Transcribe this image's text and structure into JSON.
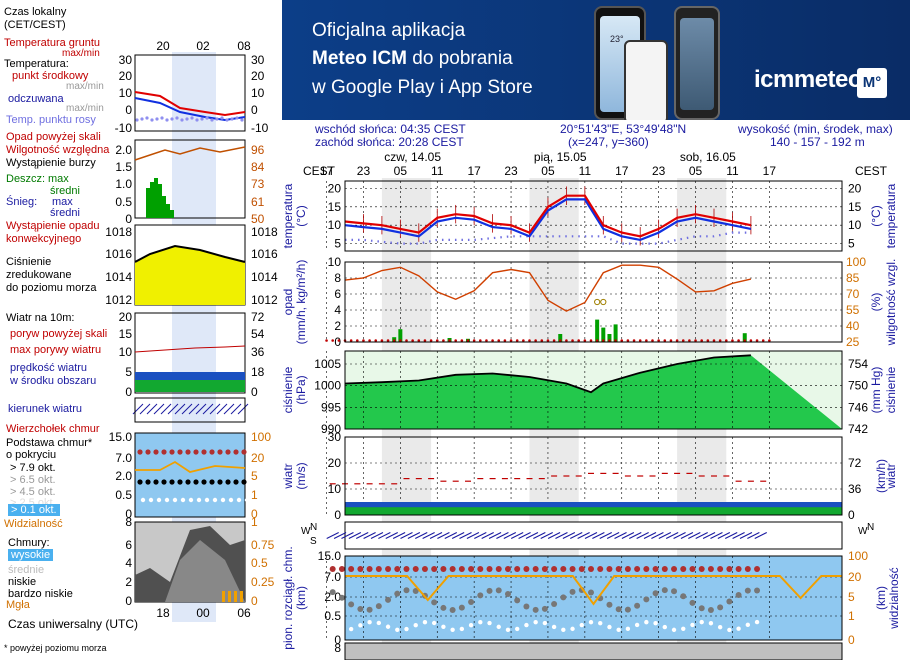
{
  "legend": {
    "time_local": "Czas lokalny",
    "time_local_zone": "(CET/CEST)",
    "soil_temp": "Temperatura gruntu",
    "soil_temp_minmax": "max/min",
    "temperature": "Temperatura:",
    "mid_point": "punkt środkowy",
    "max_min": "max/min",
    "apparent": "odczuwana",
    "apparent_minmax": "max/min",
    "dew_point": "Temp. punktu rosy",
    "precip_above": "Opad powyżej skali",
    "humidity": "Wilgotność względna",
    "storm": "Wystąpienie burzy",
    "rain": "Deszcz:",
    "snow": "Śnieg:",
    "max": "max",
    "mean": "średni",
    "precip_convective_1": "Wystąpienie opadu",
    "precip_convective_2": "konwekcyjnego",
    "pressure_1": "Ciśnienie",
    "pressure_2": "zredukowane",
    "pressure_3": "do poziomu morza",
    "wind_10m": "Wiatr na 10m:",
    "gusts_above": "poryw powyżej skali",
    "max_gusts": "max porywy wiatru",
    "wind_speed_1": "prędkość wiatru",
    "wind_speed_2": "w środku obszaru",
    "wind_dir": "kierunek wiatru",
    "cloud_top": "Wierzchołek chmur",
    "cloud_base_1": "Podstawa chmur*",
    "cloud_base_2": "o pokryciu",
    "okt_79": "> 7.9 okt.",
    "okt_65": "> 6.5 okt.",
    "okt_45": "> 4.5 okt.",
    "okt_25": "> 2.5 okt.",
    "okt_01": "> 0.1 okt.",
    "visibility": "Widzialność",
    "clouds": "Chmury:",
    "high": "wysokie",
    "medium": "średnie",
    "low": "niskie",
    "very_low": "bardzo niskie",
    "fog": "Mgła",
    "utc": "Czas uniwersalny (UTC)",
    "footnote": "* powyżej poziomu morza"
  },
  "legend_axes": {
    "time_top": [
      "20",
      "02",
      "08"
    ],
    "time_bottom": [
      "18",
      "00",
      "06"
    ],
    "temp_left": [
      "30",
      "20",
      "10",
      "0",
      "-10"
    ],
    "temp_right": [
      "30",
      "20",
      "10",
      "0",
      "-10"
    ],
    "precip_left": [
      "2.0",
      "1.5",
      "1.0",
      "0.5",
      "0"
    ],
    "precip_right": [
      "96",
      "84",
      "73",
      "61",
      "50"
    ],
    "pressure_left": [
      "1018",
      "1016",
      "1014",
      "1012"
    ],
    "pressure_right": [
      "1018",
      "1016",
      "1014",
      "1012"
    ],
    "wind_left": [
      "20",
      "15",
      "10",
      "5",
      "0"
    ],
    "wind_right": [
      "72",
      "54",
      "36",
      "18",
      "0"
    ],
    "cloud_left": [
      "15.0",
      "7.0",
      "2.0",
      "0.5",
      "0"
    ],
    "cloud_right": [
      "100",
      "20",
      "5",
      "1",
      "0"
    ],
    "cover_left": [
      "8",
      "6",
      "4",
      "2",
      "0"
    ],
    "cover_right": [
      "1",
      "0.75",
      "0.5",
      "0.25",
      "0"
    ]
  },
  "banner": {
    "line1": "Oficjalna aplikacja",
    "line2_bold": "Meteo ICM",
    "line2_rest": " do pobrania",
    "line3": "w Google Play i App Store",
    "logo": "icmmeteo",
    "badge": "M°",
    "phone_temp": "23°"
  },
  "info": {
    "sunrise": "wschód słońca: 04:35 CEST",
    "sunset": "zachód słońca: 20:28 CEST",
    "coords": "20°51'43\"E, 53°49'48\"N",
    "grid": "(x=247, y=360)",
    "elevation_label": "wysokość (min, środek, max)",
    "elevation": "140 - 157 - 192 m"
  },
  "timeline": {
    "tz": "CEST",
    "days": [
      {
        "label": "czw, 14.05",
        "hour": 11
      },
      {
        "label": "pią, 15.05",
        "hour": 35
      },
      {
        "label": "sob, 16.05",
        "hour": 59
      }
    ],
    "hours": [
      "17",
      "23",
      "05",
      "11",
      "17",
      "23",
      "05",
      "11",
      "17",
      "23",
      "05",
      "11",
      "17"
    ]
  },
  "panels": {
    "temperature": {
      "ylabel": "temperatura",
      "unit": "(°C)",
      "ticks": [
        "20",
        "15",
        "10",
        "5"
      ]
    },
    "precip": {
      "ylabel": "opad",
      "unit": "(mm/h, kg/m²/h)",
      "ticks": [
        "10",
        "8",
        "6",
        "4",
        "2",
        "0"
      ],
      "ylabel_r": "wilgotność wzgl.",
      "unit_r": "(%)",
      "ticks_r": [
        "100",
        "85",
        "70",
        "55",
        "40",
        "25"
      ]
    },
    "pressure": {
      "ylabel": "ciśnienie",
      "unit": "(hPa)",
      "ticks": [
        "1005",
        "1000",
        "995",
        "990"
      ],
      "ylabel_r": "ciśnienie",
      "unit_r": "(mm Hg)",
      "ticks_r": [
        "754",
        "750",
        "746",
        "742"
      ]
    },
    "wind": {
      "ylabel": "wiatr",
      "unit": "(m/s)",
      "ticks": [
        "30",
        "20",
        "10",
        "0"
      ],
      "unit_r": "(km/h)",
      "ticks_r": [
        "72",
        "36",
        "0"
      ]
    },
    "winddir": {
      "n_label": "N",
      "w_label": "W",
      "e_label": "E",
      "s_label": "S"
    },
    "clouds": {
      "ylabel": "pion. rozciągł. chm.",
      "unit": "(km)",
      "ticks": [
        "15.0",
        "7.0",
        "2.0",
        "0.5",
        "0"
      ],
      "ylabel_r": "widzialność",
      "unit_r": "(km)",
      "ticks_r": [
        "100",
        "20",
        "5",
        "1",
        "0"
      ]
    },
    "cover": {
      "ticks": [
        "8"
      ]
    }
  },
  "colors": {
    "temp_red": "#e00000",
    "temp_blue": "#1030e0",
    "dew": "#6f6fe0",
    "precip_green": "#00a000",
    "humidity": "#d04000",
    "pressure_fill": "#00c030",
    "pressure_legend_fill": "#f0f000",
    "wind_red": "#c00000",
    "night": "#d8d8d8",
    "sky_blue": "#8fc8f0",
    "banner": "#0b3576"
  },
  "chart_data": [
    {
      "type": "line",
      "title": "temperatura",
      "ylabel": "(°C)",
      "ylim": [
        3,
        22
      ],
      "x_hours": [
        0,
        3,
        6,
        9,
        12,
        15,
        18,
        21,
        24,
        27,
        30,
        33,
        36,
        39,
        42,
        45,
        48,
        51,
        54,
        57,
        60,
        63,
        66
      ],
      "series": [
        {
          "name": "max/min",
          "values": [
            11,
            10.5,
            10,
            9,
            8,
            12,
            13,
            12.5,
            10.5,
            10,
            8,
            15,
            18,
            18,
            10,
            8,
            7,
            9,
            12,
            13,
            12,
            11,
            10
          ]
        },
        {
          "name": "punkt środkowy",
          "values": [
            10,
            9.5,
            9,
            8,
            7,
            11,
            12,
            11.5,
            9.5,
            9,
            7,
            14,
            17,
            17,
            9,
            7,
            6,
            8,
            11,
            12,
            11,
            10,
            9
          ]
        },
        {
          "name": "Temp. punktu rosy",
          "values": [
            6,
            6,
            5.5,
            5,
            5,
            6,
            6,
            6,
            6.5,
            7,
            7,
            7,
            7,
            7,
            7,
            5,
            5,
            5,
            6,
            7,
            7,
            8,
            8
          ]
        }
      ]
    },
    {
      "type": "bar",
      "title": "opad",
      "ylabel": "(mm/h, kg/m²/h)",
      "ylim": [
        0,
        10
      ],
      "y2label": "wilgotność wzgl. (%)",
      "y2lim": [
        25,
        100
      ],
      "bars": [
        {
          "hour": 8,
          "value": 0.6
        },
        {
          "hour": 9,
          "value": 1.6
        },
        {
          "hour": 17,
          "value": 0.5
        },
        {
          "hour": 20,
          "value": 0.4
        },
        {
          "hour": 35,
          "value": 1.0
        },
        {
          "hour": 41,
          "value": 2.8
        },
        {
          "hour": 42,
          "value": 1.8
        },
        {
          "hour": 43,
          "value": 1.0
        },
        {
          "hour": 44,
          "value": 2.2
        },
        {
          "hour": 65,
          "value": 1.1
        }
      ],
      "humidity_x": [
        0,
        3,
        6,
        9,
        12,
        15,
        18,
        21,
        24,
        27,
        30,
        33,
        36,
        39,
        42,
        45,
        48,
        51,
        54,
        57,
        60,
        63,
        66
      ],
      "humidity": [
        83,
        85,
        92,
        95,
        87,
        72,
        65,
        73,
        90,
        93,
        90,
        64,
        54,
        62,
        90,
        97,
        97,
        95,
        84,
        72,
        73,
        80,
        84
      ]
    },
    {
      "type": "area",
      "title": "ciśnienie",
      "ylabel": "(hPa)",
      "ylim": [
        990,
        1008
      ],
      "x_hours": [
        0,
        6,
        12,
        18,
        24,
        30,
        36,
        40,
        42,
        48,
        54,
        60,
        66
      ],
      "values": [
        1000.5,
        1000.8,
        1001.2,
        1002.5,
        1002.8,
        1002,
        1000.5,
        998.5,
        1000.5,
        1003,
        1005,
        1006.5,
        1007
      ]
    },
    {
      "type": "line",
      "title": "wiatr",
      "ylabel": "(m/s)",
      "ylim": [
        0,
        30
      ],
      "x_hours": [
        0,
        6,
        12,
        18,
        24,
        30,
        36,
        42,
        48,
        54,
        60,
        66
      ],
      "series": [
        {
          "name": "max porywy wiatru",
          "values": [
            12,
            12,
            14,
            13,
            14,
            14,
            15,
            16,
            15,
            16,
            15,
            13
          ]
        },
        {
          "name": "prędkość wiatru",
          "values": [
            4,
            4,
            4,
            4,
            4,
            4,
            4,
            5,
            4,
            4,
            5,
            5
          ]
        }
      ]
    },
    {
      "type": "scatter",
      "title": "pion. rozciągł. chm.",
      "ylabel": "(km)",
      "ylim": [
        0,
        15
      ],
      "series": [
        {
          "name": "Wierzchołek chmur",
          "values": [
            8,
            8,
            8,
            8,
            8,
            8,
            8,
            8,
            8,
            8,
            8,
            8
          ]
        },
        {
          "name": "Widzialność",
          "values": [
            20,
            20,
            14,
            20,
            20,
            20,
            20,
            20,
            20,
            20,
            20,
            20
          ]
        }
      ]
    }
  ]
}
